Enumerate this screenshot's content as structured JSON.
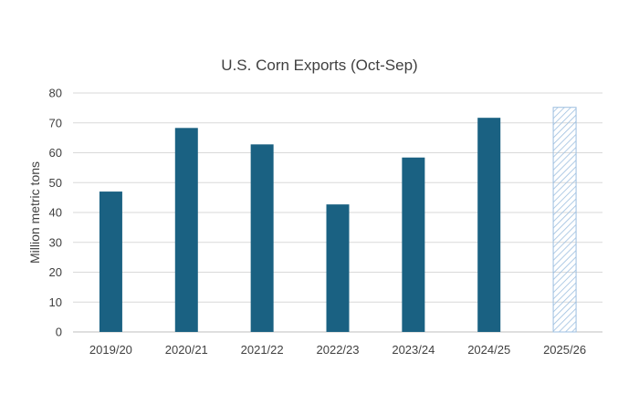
{
  "colors": {
    "bar": "#1a6182",
    "forecast_stroke": "#9dbfe0",
    "grid": "#d9d9d9",
    "axis": "#bfbfbf"
  },
  "chart_data": {
    "type": "bar",
    "title": "U.S. Corn Exports (Oct-Sep)",
    "xlabel": "",
    "ylabel": "Million metric tons",
    "ylim": [
      0,
      80
    ],
    "yticks": [
      0,
      10,
      20,
      30,
      40,
      50,
      60,
      70,
      80
    ],
    "grid": true,
    "categories": [
      "2019/20",
      "2020/21",
      "2021/22",
      "2022/23",
      "2023/24",
      "2024/25",
      "2025/26"
    ],
    "values": [
      47,
      68.3,
      62.8,
      42.7,
      58.4,
      71.7,
      75.2
    ],
    "forecast_index": 6
  }
}
